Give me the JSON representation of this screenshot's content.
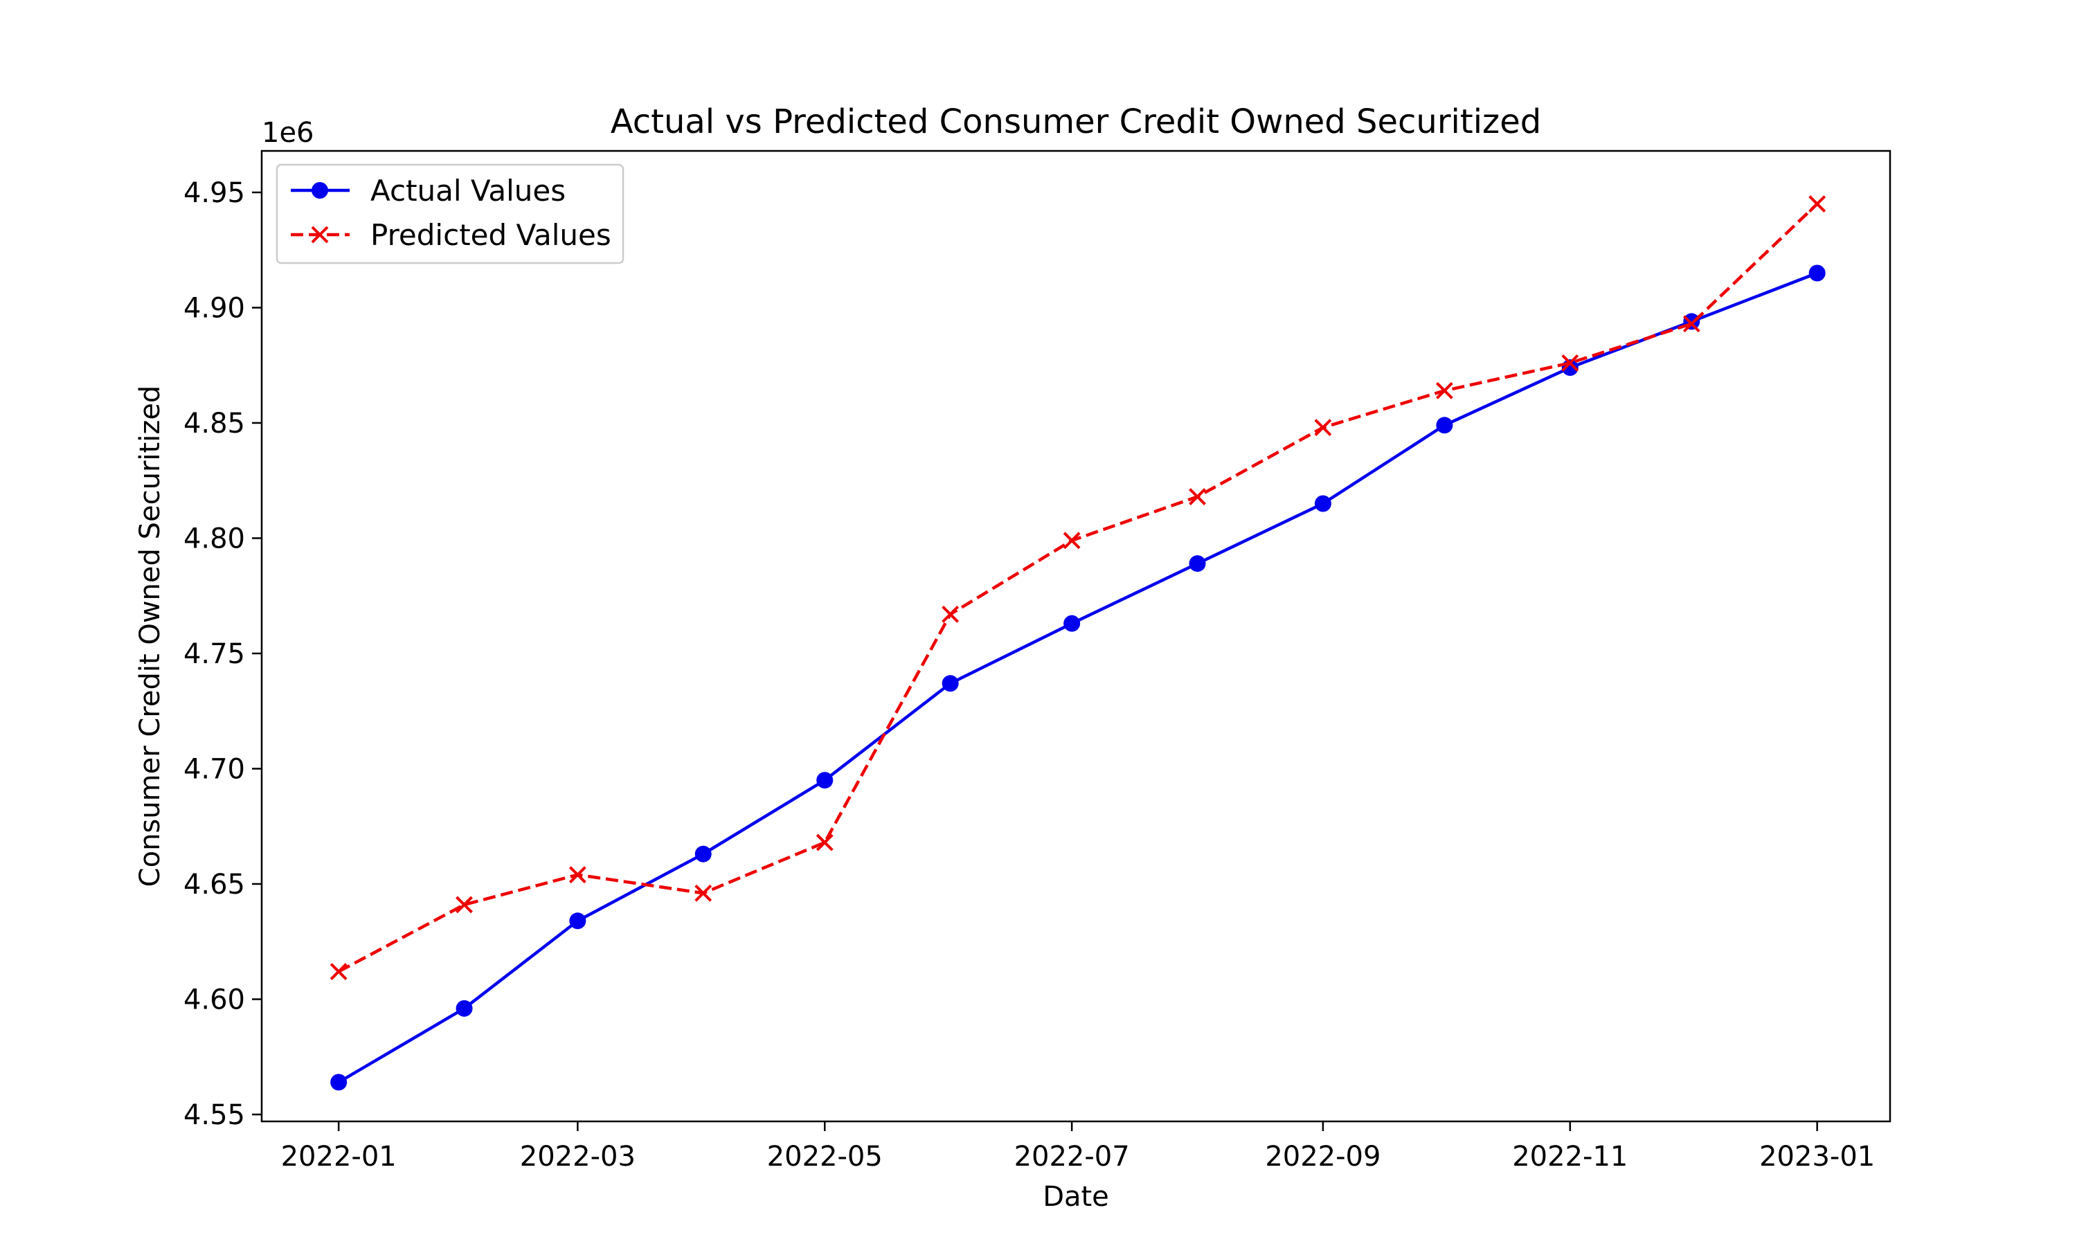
{
  "chart_data": {
    "type": "line",
    "title": "Actual vs Predicted Consumer Credit Owned Securitized",
    "xlabel": "Date",
    "ylabel": "Consumer Credit Owned Securitized",
    "y_offset_label": "1e6",
    "ylim": [
      4.547,
      4.968
    ],
    "y_ticks": [
      4.55,
      4.6,
      4.65,
      4.7,
      4.75,
      4.8,
      4.85,
      4.9,
      4.95
    ],
    "y_tick_labels": [
      "4.55",
      "4.60",
      "4.65",
      "4.70",
      "4.75",
      "4.80",
      "4.85",
      "4.90",
      "4.95"
    ],
    "xlim": [
      "2021-12-13",
      "2023-01-19"
    ],
    "x": [
      "2022-01-01",
      "2022-02-01",
      "2022-03-01",
      "2022-04-01",
      "2022-05-01",
      "2022-06-01",
      "2022-07-01",
      "2022-08-01",
      "2022-09-01",
      "2022-10-01",
      "2022-11-01",
      "2022-12-01",
      "2023-01-01"
    ],
    "x_ticks": [
      "2022-01-01",
      "2022-03-01",
      "2022-05-01",
      "2022-07-01",
      "2022-09-01",
      "2022-11-01",
      "2023-01-01"
    ],
    "x_tick_labels": [
      "2022-01",
      "2022-03",
      "2022-05",
      "2022-07",
      "2022-09",
      "2022-11",
      "2023-01"
    ],
    "grid": false,
    "legend_position": "top-left",
    "series": [
      {
        "name": "Actual Values",
        "color": "#0000ee",
        "line_style": "solid",
        "marker": "circle",
        "values": [
          4.564,
          4.596,
          4.634,
          4.663,
          4.695,
          4.737,
          4.763,
          4.789,
          4.815,
          4.849,
          4.874,
          4.894,
          4.915
        ]
      },
      {
        "name": "Predicted Values",
        "color": "#ee0000",
        "line_style": "dashed",
        "marker": "x",
        "values": [
          4.612,
          4.641,
          4.654,
          4.646,
          4.668,
          4.767,
          4.799,
          4.818,
          4.848,
          4.864,
          4.876,
          4.893,
          4.945
        ]
      }
    ]
  }
}
